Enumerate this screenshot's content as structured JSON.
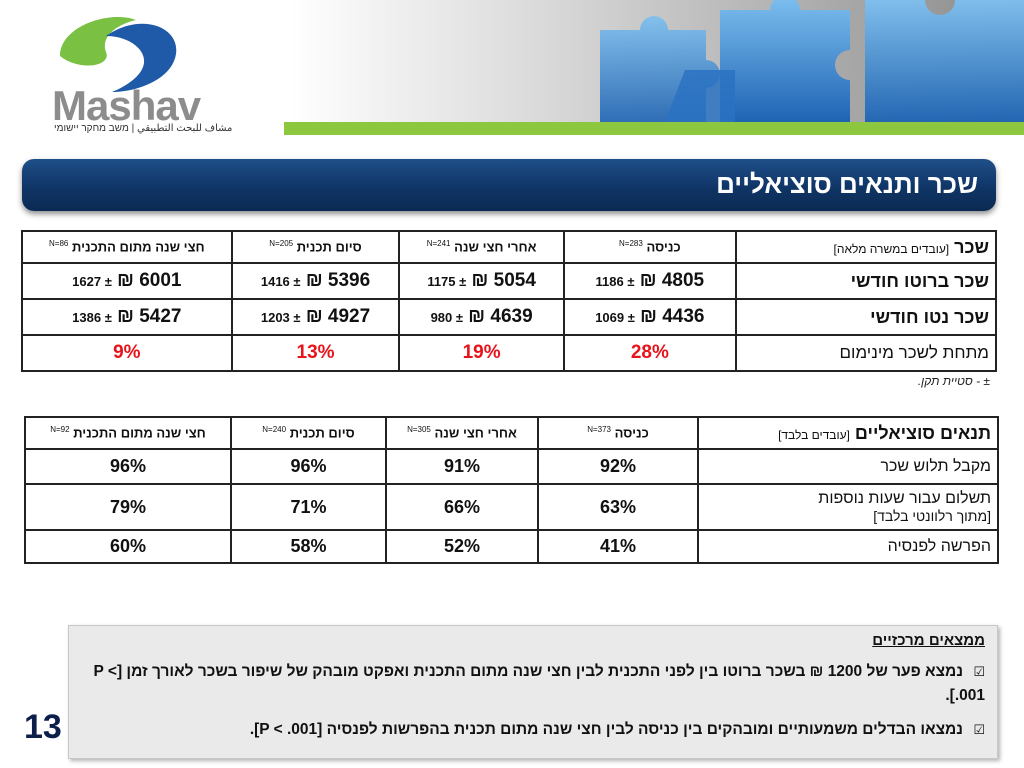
{
  "brand": {
    "logo_text": "Mashav",
    "logo_subtitle": "مشاف للبحث التطبيقي | משב מחקר יישומי"
  },
  "title": "שכר ותנאים סוציאליים",
  "wage_table": {
    "header": {
      "main": "שכר",
      "main_bracket": "[עובדים במשרה מלאה]",
      "columns": [
        {
          "label": "כניסה",
          "n": "N=283"
        },
        {
          "label": "אחרי חצי שנה",
          "n": "N=241"
        },
        {
          "label": "סיום תכנית",
          "n": "N=205"
        },
        {
          "label": "חצי שנה מתום התכנית",
          "n": "N=86"
        }
      ]
    },
    "rows": [
      {
        "label": "שכר ברוטו חודשי",
        "cells": [
          {
            "mean": "4805 ₪",
            "sd": "± 1186"
          },
          {
            "mean": "5054 ₪",
            "sd": "± 1175"
          },
          {
            "mean": "5396 ₪",
            "sd": "± 1416"
          },
          {
            "mean": "6001 ₪",
            "sd": "± 1627"
          }
        ]
      },
      {
        "label": "שכר נטו חודשי",
        "cells": [
          {
            "mean": "4436 ₪",
            "sd": "± 1069"
          },
          {
            "mean": "4639 ₪",
            "sd": "± 980"
          },
          {
            "mean": "4927 ₪",
            "sd": "± 1203"
          },
          {
            "mean": "5427 ₪",
            "sd": "± 1386"
          }
        ]
      },
      {
        "label": "מתחת לשכר מינימום",
        "cells": [
          "28%",
          "19%",
          "13%",
          "9%"
        ]
      }
    ],
    "footnote": "± - סטיית תקן."
  },
  "social_table": {
    "header": {
      "main": "תנאים סוציאליים",
      "main_bracket": "[עובדים בלבד]",
      "columns": [
        {
          "label": "כניסה",
          "n": "N=373"
        },
        {
          "label": "אחרי חצי שנה",
          "n": "N=305"
        },
        {
          "label": "סיום תכנית",
          "n": "N=240"
        },
        {
          "label": "חצי שנה מתום התכנית",
          "n": "N=92"
        }
      ]
    },
    "rows": [
      {
        "label": "מקבל תלוש שכר",
        "sub": "",
        "cells": [
          "92%",
          "91%",
          "96%",
          "96%"
        ]
      },
      {
        "label": "תשלום עבור שעות נוספות",
        "sub": "[מתוך רלוונטי בלבד]",
        "cells": [
          "63%",
          "66%",
          "71%",
          "79%"
        ]
      },
      {
        "label": "הפרשה לפנסיה",
        "sub": "",
        "cells": [
          "41%",
          "52%",
          "58%",
          "60%"
        ]
      }
    ]
  },
  "findings": {
    "title": "ממצאים מרכזיים",
    "items": [
      "נמצא פער של 1200 ₪ בשכר ברוטו בין לפני התכנית לבין חצי שנה מתום התכנית ואפקט מובהק של שיפור בשכר לאורך זמן [P < .001].",
      "נמצאו הבדלים משמעותיים ומובהקים בין כניסה לבין חצי שנה מתום תכנית בהפרשות לפנסיה [P < .001]."
    ]
  },
  "page_number": "13",
  "colors": {
    "title_bar": "#0f3566",
    "accent_green": "#8dc63f",
    "highlight_red": "#e8131b",
    "logo_green": "#7ac143",
    "logo_blue": "#1f5aa8"
  }
}
